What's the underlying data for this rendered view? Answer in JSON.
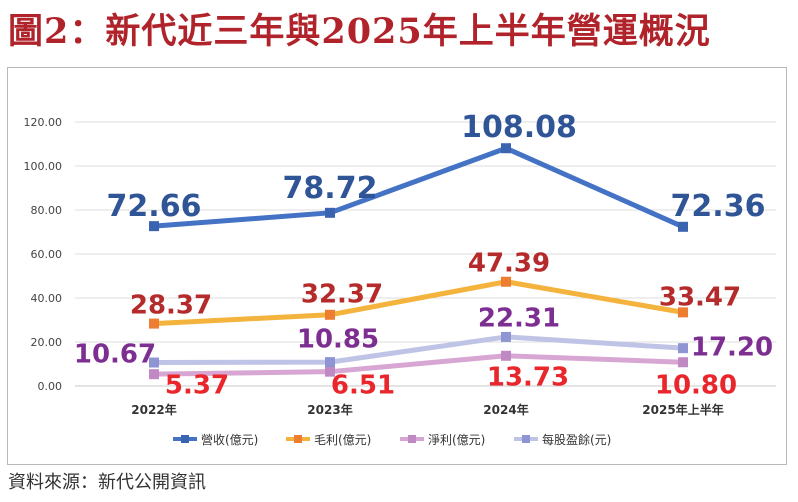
{
  "title": "圖2：新代近三年與2025年上半年營運概況",
  "source": "資料來源：新代公開資訊",
  "chart_data": {
    "type": "line",
    "categories": [
      "2022年",
      "2023年",
      "2024年",
      "2025年上半年"
    ],
    "ylim": [
      0,
      120
    ],
    "yticks": [
      "0.00",
      "20.00",
      "40.00",
      "60.00",
      "80.00",
      "100.00",
      "120.00"
    ],
    "grid": true,
    "legend_position": "bottom",
    "series": [
      {
        "name": "營收(億元)",
        "values": [
          72.66,
          78.72,
          108.08,
          72.36
        ],
        "labels": [
          "72.66",
          "78.72",
          "108.08",
          "72.36"
        ],
        "line_color": "#4472c4",
        "marker_color": "#3a63b0",
        "label_color": "#2f5597"
      },
      {
        "name": "毛利(億元)",
        "values": [
          28.37,
          32.37,
          47.39,
          33.47
        ],
        "labels": [
          "28.37",
          "32.37",
          "47.39",
          "33.47"
        ],
        "line_color": "#f3b33d",
        "marker_color": "#ed7d31",
        "label_color": "#b52a2a"
      },
      {
        "name": "淨利(億元)",
        "values": [
          5.37,
          6.51,
          13.73,
          10.8
        ],
        "labels": [
          "5.37",
          "6.51",
          "13.73",
          "10.80"
        ],
        "line_color": "#d7a6d3",
        "marker_color": "#c089c4",
        "label_color": "#e8262b"
      },
      {
        "name": "每股盈餘(元)",
        "values": [
          10.67,
          10.85,
          22.31,
          17.2
        ],
        "labels": [
          "10.67",
          "10.85",
          "22.31",
          "17.20"
        ],
        "line_color": "#bfc3e6",
        "marker_color": "#8e95d2",
        "label_color": "#7d2e91"
      }
    ]
  }
}
